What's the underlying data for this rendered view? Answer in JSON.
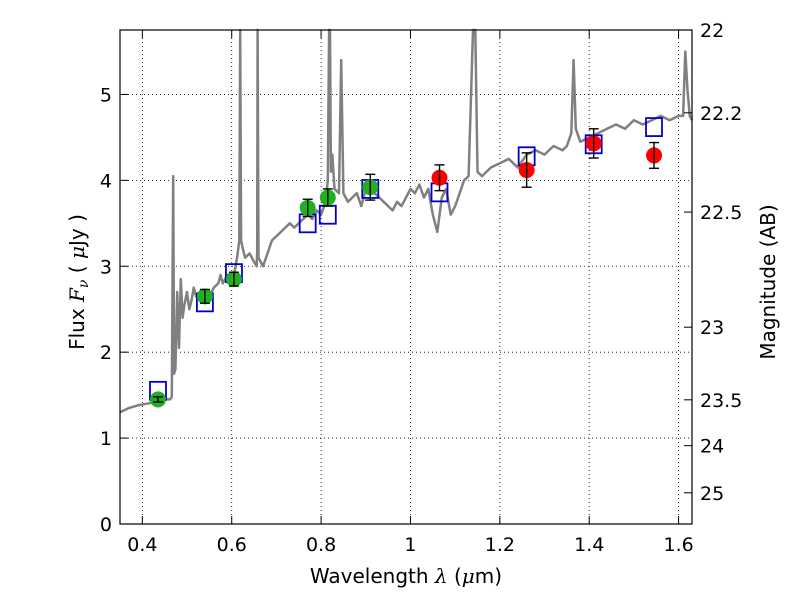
{
  "chart_data": {
    "type": "scatter",
    "title": "",
    "xlabel": "Wavelength",
    "xlabel_symbol": "λ",
    "xlabel_unit_open": "(",
    "xlabel_unit_mu": "μ",
    "xlabel_unit_rest": "m)",
    "ylabel": "Flux",
    "ylabel_symbol": "F",
    "ylabel_sub": "ν",
    "ylabel_unit_open": "(",
    "ylabel_unit_mu": "μ",
    "ylabel_unit_rest": "Jy",
    "ylabel_unit_close": ")",
    "y2label": "Magnitude (AB)",
    "xlim": [
      0.35,
      1.63
    ],
    "ylim": [
      0,
      5.75
    ],
    "grid": true,
    "x_ticks": [
      {
        "value": 0.4,
        "label": "0.4"
      },
      {
        "value": 0.6,
        "label": "0.6"
      },
      {
        "value": 0.8,
        "label": "0.8"
      },
      {
        "value": 1.0,
        "label": "1"
      },
      {
        "value": 1.2,
        "label": "1.2"
      },
      {
        "value": 1.4,
        "label": "1.4"
      },
      {
        "value": 1.6,
        "label": "1.6"
      }
    ],
    "y_ticks": [
      {
        "value": 0,
        "label": "0"
      },
      {
        "value": 1,
        "label": "1"
      },
      {
        "value": 2,
        "label": "2"
      },
      {
        "value": 3,
        "label": "3"
      },
      {
        "value": 4,
        "label": "4"
      },
      {
        "value": 5,
        "label": "5"
      }
    ],
    "y2_ticks": [
      {
        "value": 22,
        "label": "22"
      },
      {
        "value": 22.2,
        "label": "22.2"
      },
      {
        "value": 22.5,
        "label": "22.5"
      },
      {
        "value": 23,
        "label": "23"
      },
      {
        "value": 23.5,
        "label": "23.5"
      },
      {
        "value": 24,
        "label": "24"
      },
      {
        "value": 25,
        "label": "25"
      }
    ],
    "colors": {
      "spectrum": "#808080",
      "model_box": "#0000cc",
      "optical": "#22b022",
      "nir": "#ff0000",
      "errorbar": "#000000"
    },
    "series": [
      {
        "name": "model spectrum",
        "kind": "line",
        "x": [
          0.35,
          0.37,
          0.39,
          0.41,
          0.43,
          0.45,
          0.462,
          0.466,
          0.469,
          0.471,
          0.474,
          0.478,
          0.482,
          0.486,
          0.49,
          0.494,
          0.5,
          0.505,
          0.51,
          0.515,
          0.52,
          0.53,
          0.54,
          0.55,
          0.56,
          0.57,
          0.575,
          0.58,
          0.59,
          0.6,
          0.607,
          0.612,
          0.617,
          0.619,
          0.621,
          0.625,
          0.63,
          0.64,
          0.65,
          0.656,
          0.657,
          0.658,
          0.66,
          0.665,
          0.67,
          0.68,
          0.69,
          0.7,
          0.71,
          0.72,
          0.73,
          0.74,
          0.75,
          0.76,
          0.77,
          0.78,
          0.79,
          0.8,
          0.81,
          0.815,
          0.818,
          0.82,
          0.822,
          0.825,
          0.83,
          0.84,
          0.845,
          0.85,
          0.86,
          0.87,
          0.88,
          0.89,
          0.9,
          0.91,
          0.92,
          0.93,
          0.94,
          0.95,
          0.96,
          0.97,
          0.98,
          0.99,
          1.0,
          1.01,
          1.02,
          1.03,
          1.04,
          1.05,
          1.06,
          1.07,
          1.08,
          1.09,
          1.1,
          1.12,
          1.13,
          1.14,
          1.145,
          1.15,
          1.16,
          1.18,
          1.2,
          1.22,
          1.24,
          1.26,
          1.28,
          1.3,
          1.32,
          1.34,
          1.35,
          1.36,
          1.365,
          1.37,
          1.38,
          1.4,
          1.42,
          1.44,
          1.46,
          1.48,
          1.5,
          1.52,
          1.54,
          1.56,
          1.58,
          1.6,
          1.61,
          1.615,
          1.62,
          1.625,
          1.63
        ],
        "y": [
          1.3,
          1.35,
          1.38,
          1.4,
          1.42,
          1.45,
          1.45,
          1.48,
          4.05,
          1.75,
          1.8,
          2.7,
          2.05,
          2.85,
          2.4,
          2.55,
          2.7,
          2.5,
          2.6,
          2.75,
          2.65,
          2.7,
          2.6,
          2.65,
          2.75,
          2.8,
          2.9,
          2.8,
          2.9,
          2.85,
          2.95,
          3.1,
          3.3,
          5.75,
          3.3,
          3.2,
          3.1,
          3.15,
          3.05,
          3.0,
          3.2,
          5.75,
          3.1,
          3.05,
          3.0,
          3.15,
          3.3,
          3.35,
          3.4,
          3.45,
          3.5,
          3.45,
          3.5,
          3.55,
          3.6,
          3.55,
          3.65,
          3.6,
          3.75,
          4.0,
          5.75,
          5.75,
          4.1,
          4.3,
          3.9,
          3.85,
          5.4,
          3.85,
          3.75,
          3.8,
          3.85,
          3.7,
          3.9,
          3.95,
          3.85,
          3.8,
          3.75,
          3.7,
          3.65,
          3.75,
          3.7,
          3.8,
          3.9,
          3.85,
          3.95,
          3.8,
          3.9,
          3.6,
          3.4,
          3.8,
          3.9,
          3.6,
          3.7,
          4.0,
          4.05,
          5.75,
          5.75,
          4.1,
          4.05,
          4.15,
          4.2,
          4.25,
          4.15,
          4.3,
          4.35,
          4.3,
          4.4,
          4.35,
          4.4,
          4.55,
          5.4,
          4.6,
          4.45,
          4.5,
          4.55,
          4.6,
          4.65,
          4.6,
          4.7,
          4.65,
          4.7,
          4.75,
          4.7,
          4.75,
          4.75,
          5.5,
          5.05,
          4.75,
          4.7
        ]
      },
      {
        "name": "model photometry",
        "kind": "box",
        "x": [
          0.435,
          0.54,
          0.605,
          0.77,
          0.815,
          0.91,
          1.065,
          1.26,
          1.41,
          1.545
        ],
        "y": [
          1.55,
          2.58,
          2.92,
          3.5,
          3.6,
          3.9,
          3.86,
          4.28,
          4.42,
          4.62
        ]
      },
      {
        "name": "optical photometry",
        "kind": "point",
        "x": [
          0.435,
          0.54,
          0.605,
          0.77,
          0.815,
          0.91
        ],
        "y": [
          1.45,
          2.65,
          2.85,
          3.68,
          3.8,
          3.92
        ],
        "err": [
          0.03,
          0.08,
          0.08,
          0.1,
          0.1,
          0.15
        ]
      },
      {
        "name": "near-infrared photometry",
        "kind": "point",
        "x": [
          1.065,
          1.26,
          1.41,
          1.545
        ],
        "y": [
          4.03,
          4.12,
          4.43,
          4.29
        ],
        "err": [
          0.15,
          0.2,
          0.17,
          0.15
        ]
      }
    ]
  }
}
